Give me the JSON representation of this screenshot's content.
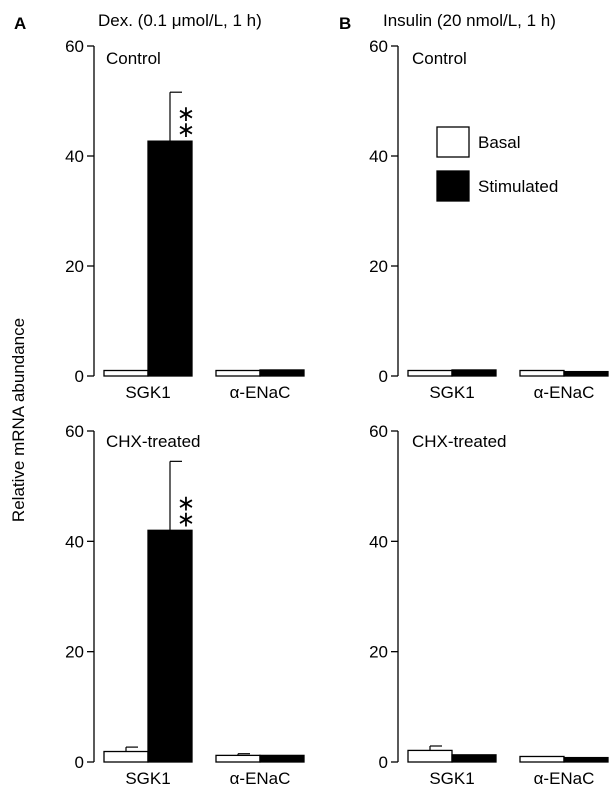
{
  "figure": {
    "ylabel": "Relative mRNA abundance",
    "columns": [
      {
        "letter": "A",
        "title": "Dex. (0.1 μmol/L, 1 h)"
      },
      {
        "letter": "B",
        "title": "Insulin (20 nmol/L, 1 h)"
      }
    ],
    "legend": {
      "position": "top-center of panel B-top",
      "items": [
        {
          "label": "Basal",
          "color": "#ffffff"
        },
        {
          "label": "Stimulated",
          "color": "#000000"
        }
      ]
    },
    "significance_marker": "∗"
  },
  "chart_data": [
    {
      "id": "A-top",
      "type": "bar",
      "label": "Control",
      "categories": [
        "SGK1",
        "α-ENaC"
      ],
      "yticks": [
        "0",
        "20",
        "40",
        "60"
      ],
      "ylim": [
        0,
        60
      ],
      "series": [
        {
          "name": "Basal",
          "values": [
            1.0,
            1.0
          ],
          "errors": [
            0,
            0
          ]
        },
        {
          "name": "Stimulated",
          "values": [
            42.7,
            1.1
          ],
          "errors": [
            8.9,
            0
          ]
        }
      ],
      "significance": [
        {
          "category": 0,
          "series": 1,
          "marks": 2
        }
      ]
    },
    {
      "id": "B-top",
      "type": "bar",
      "label": "Control",
      "categories": [
        "SGK1",
        "α-ENaC"
      ],
      "yticks": [
        "0",
        "20",
        "40",
        "60"
      ],
      "ylim": [
        0,
        60
      ],
      "series": [
        {
          "name": "Basal",
          "values": [
            1.0,
            1.0
          ],
          "errors": [
            0,
            0
          ]
        },
        {
          "name": "Stimulated",
          "values": [
            1.1,
            0.8
          ],
          "errors": [
            0,
            0
          ]
        }
      ],
      "significance": []
    },
    {
      "id": "A-bottom",
      "type": "bar",
      "label": "CHX-treated",
      "categories": [
        "SGK1",
        "α-ENaC"
      ],
      "yticks": [
        "0",
        "20",
        "40",
        "60"
      ],
      "ylim": [
        0,
        60
      ],
      "series": [
        {
          "name": "Basal",
          "values": [
            1.9,
            1.2
          ],
          "errors": [
            0.8,
            0.3
          ]
        },
        {
          "name": "Stimulated",
          "values": [
            42.0,
            1.2
          ],
          "errors": [
            12.5,
            0
          ]
        }
      ],
      "significance": [
        {
          "category": 0,
          "series": 1,
          "marks": 2
        }
      ]
    },
    {
      "id": "B-bottom",
      "type": "bar",
      "label": "CHX-treated",
      "categories": [
        "SGK1",
        "α-ENaC"
      ],
      "yticks": [
        "0",
        "20",
        "40",
        "60"
      ],
      "ylim": [
        0,
        60
      ],
      "series": [
        {
          "name": "Basal",
          "values": [
            2.1,
            1.0
          ],
          "errors": [
            0.8,
            0
          ]
        },
        {
          "name": "Stimulated",
          "values": [
            1.3,
            0.8
          ],
          "errors": [
            0,
            0
          ]
        }
      ],
      "significance": []
    }
  ]
}
